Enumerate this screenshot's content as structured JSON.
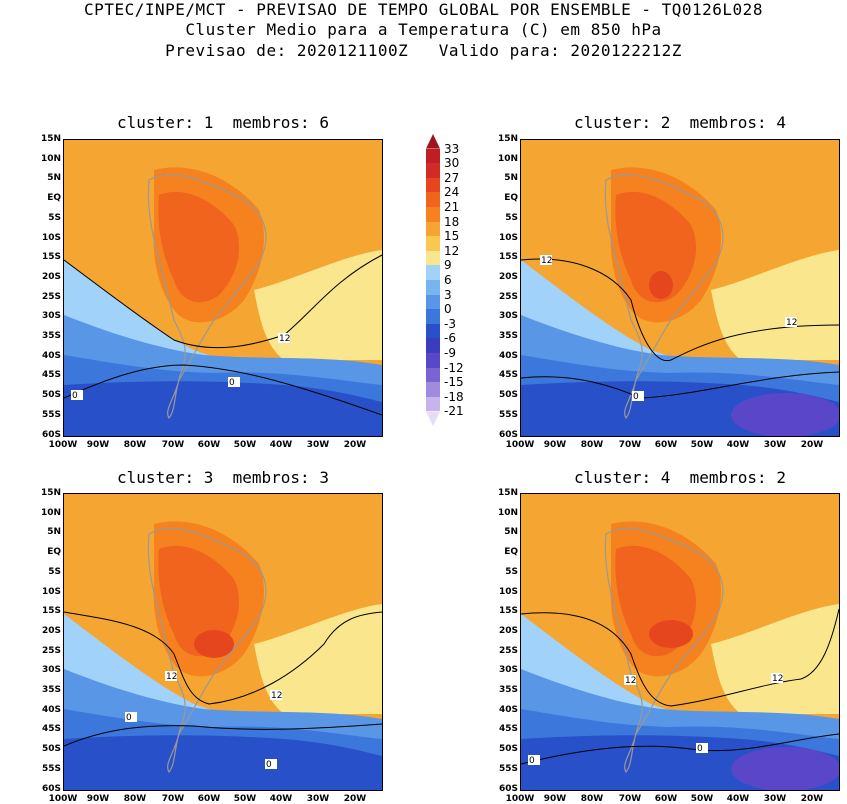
{
  "header": {
    "line1": "CPTEC/INPE/MCT - PREVISAO DE TEMPO GLOBAL POR ENSEMBLE - TQ0126L028",
    "line2": "Cluster Medio para a Temperatura (C) em 850 hPa",
    "line3": "Previsao de: 2020121100Z   Valido para: 2020122212Z"
  },
  "panels": [
    {
      "title": "cluster: 1  membros: 6"
    },
    {
      "title": "cluster: 2  membros: 4"
    },
    {
      "title": "cluster: 3  membros: 3"
    },
    {
      "title": "cluster: 4  membros: 2"
    }
  ],
  "lat_labels": [
    "15N",
    "10N",
    "5N",
    "EQ",
    "5S",
    "10S",
    "15S",
    "20S",
    "25S",
    "30S",
    "35S",
    "40S",
    "45S",
    "50S",
    "55S",
    "60S"
  ],
  "lon_labels": [
    "100W",
    "90W",
    "80W",
    "70W",
    "60W",
    "50W",
    "40W",
    "30W",
    "20W"
  ],
  "contour_labels": [
    "12",
    "0"
  ],
  "colorbar": {
    "labels": [
      "33",
      "30",
      "27",
      "24",
      "21",
      "18",
      "15",
      "12",
      "9",
      "6",
      "3",
      "0",
      "-3",
      "-6",
      "-9",
      "-12",
      "-15",
      "-18",
      "-21"
    ],
    "colors": [
      "#a0141e",
      "#be1e24",
      "#d22a24",
      "#e6461e",
      "#f0641e",
      "#f5821e",
      "#f5a532",
      "#fac850",
      "#fae68c",
      "#a0d2fa",
      "#78b4f0",
      "#5a96e6",
      "#3c78dc",
      "#2850c8",
      "#3c3cbe",
      "#5a46c8",
      "#7a64d2",
      "#a08cdc",
      "#c8b4ec",
      "#e6dcf5"
    ]
  },
  "colors": {
    "warm_core": "#f0641e",
    "hot_spot": "#e6461e",
    "orange": "#f5821e",
    "light_orange": "#f5a532",
    "yellow": "#fae68c",
    "light_blue": "#a0d2fa",
    "mid_blue": "#5a96e6",
    "blue": "#3c78dc",
    "dark_blue": "#2850c8",
    "violet": "#5a46c8"
  }
}
